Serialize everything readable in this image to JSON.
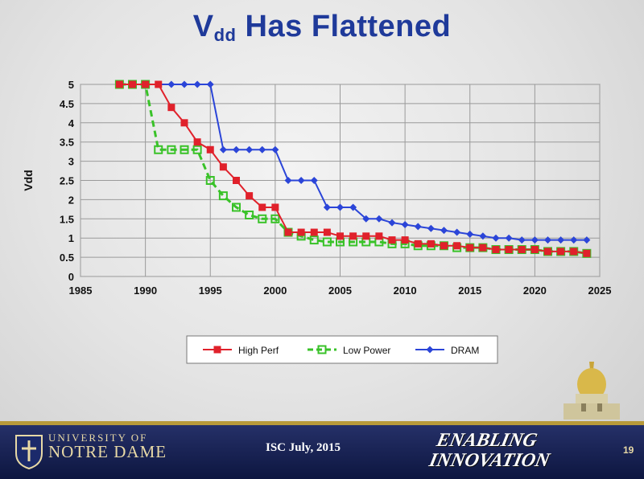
{
  "slide": {
    "title_main": "V",
    "title_sub": "dd",
    "title_rest": " Has Flattened"
  },
  "footer": {
    "university_line1": "UNIVERSITY OF",
    "university_line2": "NOTRE DAME",
    "conference": "ISC July, 2015",
    "tagline_line1": "ENABLING",
    "tagline_line2": "INNOVATION",
    "slide_number": "19",
    "colors": {
      "band": "#1a2358",
      "gold": "#b89a3a"
    }
  },
  "chart_data": {
    "type": "line",
    "title": "",
    "xlabel": "",
    "ylabel": "Vdd",
    "xlim": [
      1985,
      2025
    ],
    "ylim": [
      0,
      5
    ],
    "x_ticks": [
      "1985",
      "1990",
      "1995",
      "2000",
      "2005",
      "2010",
      "2015",
      "2020",
      "2025"
    ],
    "y_ticks": [
      "0",
      "0.5",
      "1",
      "1.5",
      "2",
      "2.5",
      "3",
      "3.5",
      "4",
      "4.5",
      "5"
    ],
    "grid": true,
    "legend_position": "bottom",
    "series": [
      {
        "name": "High Perf",
        "color": "#e0212b",
        "marker": "square",
        "x": [
          1988,
          1989,
          1990,
          1991,
          1992,
          1993,
          1994,
          1995,
          1996,
          1997,
          1998,
          1999,
          2000,
          2001,
          2002,
          2003,
          2004,
          2005,
          2006,
          2007,
          2008,
          2009,
          2010,
          2011,
          2012,
          2013,
          2014,
          2015,
          2016,
          2017,
          2018,
          2019,
          2020,
          2021,
          2022,
          2023,
          2024
        ],
        "y": [
          5,
          5,
          5,
          5,
          4.4,
          4.0,
          3.5,
          3.3,
          2.85,
          2.5,
          2.1,
          1.8,
          1.8,
          1.15,
          1.15,
          1.15,
          1.15,
          1.05,
          1.05,
          1.05,
          1.05,
          0.95,
          0.95,
          0.85,
          0.85,
          0.8,
          0.8,
          0.75,
          0.75,
          0.7,
          0.7,
          0.7,
          0.7,
          0.65,
          0.65,
          0.65,
          0.6
        ]
      },
      {
        "name": "Low Power",
        "color": "#39c228",
        "marker": "hollow-square",
        "dashed": true,
        "x": [
          1988,
          1989,
          1990,
          1991,
          1992,
          1993,
          1994,
          1995,
          1996,
          1997,
          1998,
          1999,
          2000,
          2001,
          2002,
          2003,
          2004,
          2005,
          2006,
          2007,
          2008,
          2009,
          2010,
          2011,
          2012,
          2013,
          2014,
          2015,
          2016,
          2017,
          2018,
          2019,
          2020,
          2021,
          2022,
          2023,
          2024
        ],
        "y": [
          5,
          5,
          5,
          3.3,
          3.3,
          3.3,
          3.3,
          2.5,
          2.1,
          1.8,
          1.6,
          1.5,
          1.5,
          1.15,
          1.05,
          0.95,
          0.9,
          0.9,
          0.9,
          0.9,
          0.9,
          0.85,
          0.85,
          0.8,
          0.8,
          0.8,
          0.75,
          0.75,
          0.75,
          0.7,
          0.7,
          0.7,
          0.7,
          0.65,
          0.65,
          0.65,
          0.6
        ]
      },
      {
        "name": "DRAM",
        "color": "#2b45d8",
        "marker": "diamond",
        "x": [
          1988,
          1989,
          1990,
          1991,
          1992,
          1993,
          1994,
          1995,
          1996,
          1997,
          1998,
          1999,
          2000,
          2001,
          2002,
          2003,
          2004,
          2005,
          2006,
          2007,
          2008,
          2009,
          2010,
          2011,
          2012,
          2013,
          2014,
          2015,
          2016,
          2017,
          2018,
          2019,
          2020,
          2021,
          2022,
          2023,
          2024
        ],
        "y": [
          5,
          5,
          5,
          5,
          5,
          5,
          5,
          5,
          3.3,
          3.3,
          3.3,
          3.3,
          3.3,
          2.5,
          2.5,
          2.5,
          1.8,
          1.8,
          1.8,
          1.5,
          1.5,
          1.4,
          1.35,
          1.3,
          1.25,
          1.2,
          1.15,
          1.1,
          1.05,
          1.0,
          1.0,
          0.95,
          0.95,
          0.95,
          0.95,
          0.95,
          0.95
        ]
      }
    ]
  }
}
